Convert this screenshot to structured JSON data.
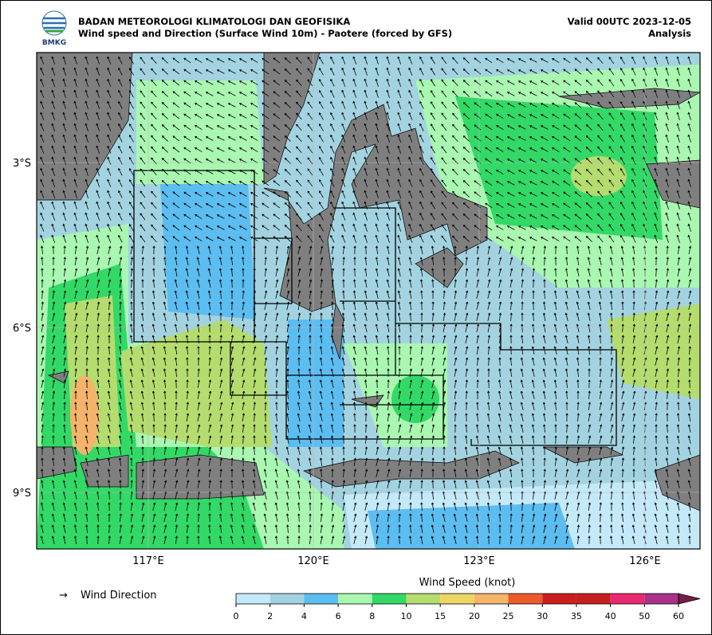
{
  "header": {
    "agency": "BADAN METEOROLOGI KLIMATOLOGI DAN GEOFISIKA",
    "subtitle": "Wind speed and Direction (Surface Wind 10m) - Paotere (forced by GFS)",
    "valid": "Valid 00UTC 2023-12-05",
    "run": "Analysis",
    "logo_text": "BMKG"
  },
  "map": {
    "lat_labels": [
      "3°S",
      "6°S",
      "9°S"
    ],
    "lon_labels": [
      "117°E",
      "120°E",
      "123°E",
      "126°E"
    ]
  },
  "legend": {
    "arrow": "→",
    "label": "Wind Direction"
  },
  "colorbar": {
    "title": "Wind Speed (knot)",
    "ticks": [
      0,
      2,
      4,
      6,
      8,
      10,
      15,
      20,
      25,
      30,
      35,
      40,
      50,
      60
    ],
    "colors": [
      "#c4e9f8",
      "#a3d3e0",
      "#5cbdf0",
      "#a9f7b1",
      "#32d966",
      "#b4dc6e",
      "#ecd662",
      "#f4b46c",
      "#ec5a2a",
      "#cc1e1e",
      "#c82020",
      "#ea2a70",
      "#a8328a"
    ]
  }
}
